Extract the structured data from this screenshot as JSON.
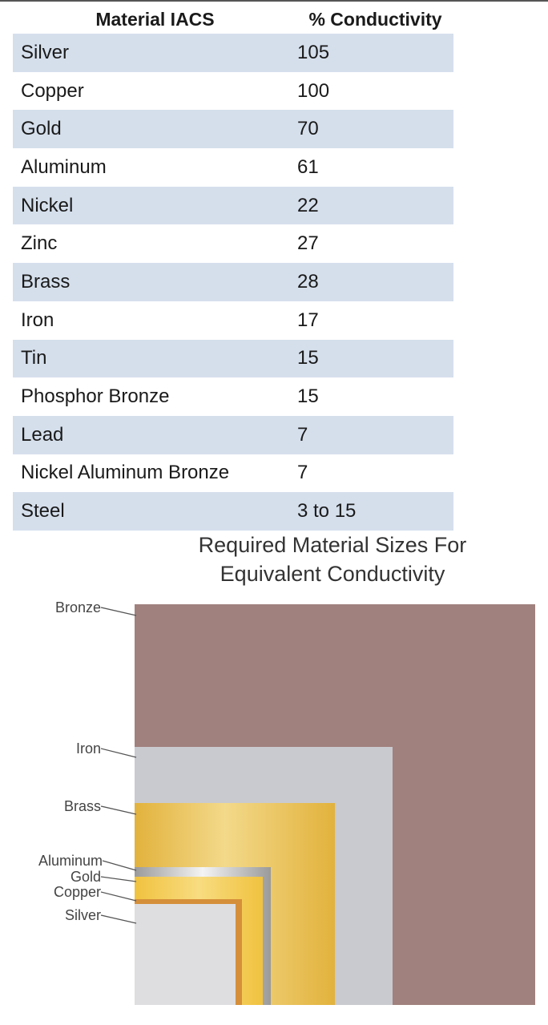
{
  "table": {
    "headers": [
      "Material IACS",
      "% Conductivity"
    ],
    "rows": [
      [
        "Silver",
        "105"
      ],
      [
        "Copper",
        "100"
      ],
      [
        "Gold",
        "70"
      ],
      [
        "Aluminum",
        "61"
      ],
      [
        "Nickel",
        "22"
      ],
      [
        "Zinc",
        "27"
      ],
      [
        "Brass",
        "28"
      ],
      [
        "Iron",
        "17"
      ],
      [
        "Tin",
        "15"
      ],
      [
        "Phosphor Bronze",
        "15"
      ],
      [
        "Lead",
        "7"
      ],
      [
        "Nickel Aluminum Bronze",
        "7"
      ],
      [
        "Steel",
        "3 to 15"
      ]
    ]
  },
  "figure": {
    "title_line1": "Required Material Sizes For",
    "title_line2": "Equivalent Conductivity",
    "labels": {
      "bronze": "Bronze",
      "iron": "Iron",
      "brass": "Brass",
      "aluminum": "Aluminum",
      "gold": "Gold",
      "copper": "Copper",
      "silver": "Silver"
    },
    "colors": {
      "bronze": "#a0817d",
      "iron": "#c9cacf",
      "brass": "#e8c257",
      "aluminum": "#bdbdbd",
      "gold": "#f2c84b",
      "copper": "#d58f3a",
      "silver": "#dedee0",
      "header_shade": "#d5dfec"
    }
  }
}
